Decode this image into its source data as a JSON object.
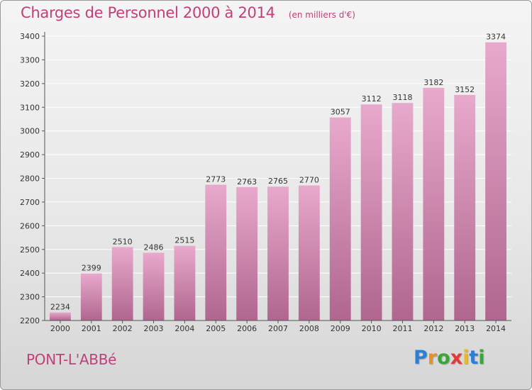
{
  "chart_data": {
    "type": "bar",
    "title": "Charges de Personnel 2000 à 2014",
    "subtitle": "(en milliers d'€)",
    "categories": [
      "2000",
      "2001",
      "2002",
      "2003",
      "2004",
      "2005",
      "2006",
      "2007",
      "2008",
      "2009",
      "2010",
      "2011",
      "2012",
      "2013",
      "2014"
    ],
    "values": [
      2234,
      2399,
      2510,
      2486,
      2515,
      2773,
      2763,
      2765,
      2770,
      3057,
      3112,
      3118,
      3182,
      3152,
      3374
    ],
    "ylim": [
      2200,
      3400
    ],
    "yticks": [
      2200,
      2300,
      2400,
      2500,
      2600,
      2700,
      2800,
      2900,
      3000,
      3100,
      3200,
      3300,
      3400
    ],
    "grid": true,
    "bar_color_top": "#e8a9cc",
    "bar_color_bottom": "#b0668f",
    "accent_color": "#c0407a"
  },
  "footer": {
    "commune": "PONT-L'ABBé",
    "logo_letters": [
      {
        "char": "P",
        "color": "#2f7fd0"
      },
      {
        "char": "r",
        "color": "#e8912a"
      },
      {
        "char": "o",
        "color": "#3aa63a"
      },
      {
        "char": "x",
        "color": "#e23a3a"
      },
      {
        "char": "i",
        "color": "#e8b92a"
      },
      {
        "char": "t",
        "color": "#2f7fd0"
      },
      {
        "char": "i",
        "color": "#3aa63a"
      }
    ]
  }
}
